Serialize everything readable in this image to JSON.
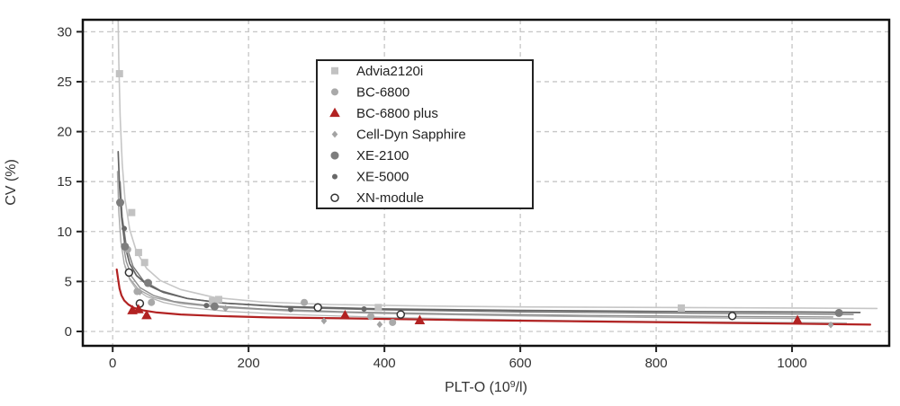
{
  "figure": {
    "background": "#ffffff",
    "xlabel_pre": "PLT-O (10",
    "xlabel_sup": "9",
    "xlabel_post": "/l)"
  },
  "colors": {
    "grid": "#c6c6c6",
    "axis_box": "#111111",
    "tick": "#222222",
    "text": "#333333",
    "legend_border": "#222222",
    "legend_bg": "#ffffff",
    "accent_red": "#b22222"
  },
  "chart_data": {
    "type": "scatter",
    "title": "",
    "xlabel": "PLT-O (10⁹/l)",
    "ylabel": "CV (%)",
    "xlim": [
      -44,
      1143
    ],
    "ylim": [
      -1.44,
      31.2
    ],
    "x_ticks": [
      0,
      200,
      400,
      600,
      800,
      1000
    ],
    "y_ticks": [
      0,
      5,
      10,
      15,
      20,
      25,
      30
    ],
    "grid": "dashed",
    "legend_position": "upper-left-of-center",
    "series": [
      {
        "name": "Advia2120i",
        "marker": "square",
        "marker_size": 8,
        "color": "#c2c2c2",
        "line_color": "#c6c6c6",
        "line_width": 1.6,
        "points": [
          [
            10,
            25.8
          ],
          [
            28,
            11.9
          ],
          [
            38,
            7.9
          ],
          [
            47,
            6.9
          ],
          [
            147,
            3.05
          ],
          [
            156,
            3.2
          ],
          [
            391,
            2.4
          ],
          [
            837,
            2.35
          ]
        ],
        "trend_curve": [
          [
            8,
            31.2
          ],
          [
            9,
            27
          ],
          [
            11,
            21.5
          ],
          [
            14,
            16.8
          ],
          [
            18,
            13.3
          ],
          [
            25,
            10.2
          ],
          [
            35,
            8.0
          ],
          [
            50,
            6.3
          ],
          [
            70,
            5.1
          ],
          [
            100,
            4.2
          ],
          [
            150,
            3.4
          ],
          [
            220,
            2.95
          ],
          [
            320,
            2.7
          ],
          [
            450,
            2.55
          ],
          [
            600,
            2.45
          ],
          [
            800,
            2.4
          ],
          [
            1000,
            2.35
          ],
          [
            1125,
            2.3
          ]
        ]
      },
      {
        "name": "BC-6800",
        "marker": "circle",
        "marker_size": 8,
        "color": "#a9a9a9",
        "line_color": "#a6a6a6",
        "line_width": 1.4,
        "points": [
          [
            22,
            8.2
          ],
          [
            36,
            4.0
          ],
          [
            57,
            2.9
          ],
          [
            282,
            2.9
          ],
          [
            380,
            1.5
          ],
          [
            412,
            0.9
          ]
        ],
        "trend_curve": [
          [
            7,
            16
          ],
          [
            9,
            12
          ],
          [
            12,
            9
          ],
          [
            17,
            6.8
          ],
          [
            25,
            5.3
          ],
          [
            38,
            4.2
          ],
          [
            60,
            3.4
          ],
          [
            100,
            2.8
          ],
          [
            160,
            2.4
          ],
          [
            260,
            2.05
          ],
          [
            400,
            1.8
          ],
          [
            600,
            1.55
          ],
          [
            800,
            1.4
          ],
          [
            1000,
            1.3
          ],
          [
            1090,
            1.25
          ]
        ]
      },
      {
        "name": "BC-6800 plus",
        "marker": "triangle",
        "marker_size": 10,
        "color": "#b22222",
        "line_color": "#b22222",
        "line_width": 2.2,
        "points": [
          [
            29,
            2.1
          ],
          [
            38,
            2.2
          ],
          [
            50,
            1.6
          ],
          [
            342,
            1.6
          ],
          [
            452,
            1.1
          ],
          [
            1008,
            1.1
          ]
        ],
        "trend_curve": [
          [
            6,
            6.2
          ],
          [
            8,
            5.2
          ],
          [
            10,
            4.3
          ],
          [
            13,
            3.6
          ],
          [
            17,
            3.1
          ],
          [
            23,
            2.7
          ],
          [
            32,
            2.35
          ],
          [
            45,
            2.1
          ],
          [
            65,
            1.9
          ],
          [
            100,
            1.7
          ],
          [
            150,
            1.55
          ],
          [
            230,
            1.4
          ],
          [
            350,
            1.3
          ],
          [
            500,
            1.15
          ],
          [
            700,
            1.0
          ],
          [
            900,
            0.85
          ],
          [
            1000,
            0.78
          ],
          [
            1115,
            0.68
          ]
        ]
      },
      {
        "name": "Cell-Dyn Sapphire",
        "marker": "diamond",
        "marker_size": 6,
        "color": "#a3a3a3",
        "line_color": "#b5b5b5",
        "line_width": 1.3,
        "points": [
          [
            40,
            3.95
          ],
          [
            166,
            2.3
          ],
          [
            311,
            1.05
          ],
          [
            393,
            0.7
          ],
          [
            1057,
            0.65
          ]
        ],
        "trend_curve": [
          [
            18,
            6.5
          ],
          [
            25,
            5.2
          ],
          [
            35,
            4.2
          ],
          [
            50,
            3.5
          ],
          [
            75,
            2.9
          ],
          [
            110,
            2.4
          ],
          [
            170,
            2.0
          ],
          [
            260,
            1.7
          ],
          [
            400,
            1.4
          ],
          [
            600,
            1.15
          ],
          [
            800,
            1.0
          ],
          [
            1000,
            0.9
          ],
          [
            1080,
            0.85
          ]
        ]
      },
      {
        "name": "XE-2100",
        "marker": "circle",
        "marker_size": 9,
        "color": "#7d7d7d",
        "line_color": "#636363",
        "line_width": 1.7,
        "points": [
          [
            11,
            12.9
          ],
          [
            18,
            8.5
          ],
          [
            52,
            4.85
          ],
          [
            150,
            2.5
          ],
          [
            1069,
            1.85
          ]
        ],
        "trend_curve": [
          [
            8,
            18
          ],
          [
            10,
            14.5
          ],
          [
            13,
            11.5
          ],
          [
            18,
            8.6
          ],
          [
            25,
            6.8
          ],
          [
            35,
            5.6
          ],
          [
            50,
            4.7
          ],
          [
            75,
            3.9
          ],
          [
            110,
            3.3
          ],
          [
            160,
            2.85
          ],
          [
            250,
            2.5
          ],
          [
            400,
            2.25
          ],
          [
            600,
            2.1
          ],
          [
            800,
            2.0
          ],
          [
            1000,
            1.95
          ],
          [
            1100,
            1.9
          ]
        ]
      },
      {
        "name": "XE-5000",
        "marker": "circle",
        "marker_size": 6,
        "color": "#686868",
        "line_color": "#7a7a7a",
        "line_width": 1.4,
        "points": [
          [
            17,
            10.3
          ],
          [
            138,
            2.6
          ],
          [
            262,
            2.2
          ],
          [
            370,
            2.25
          ]
        ],
        "trend_curve": [
          [
            11,
            15
          ],
          [
            14,
            11.5
          ],
          [
            20,
            8.6
          ],
          [
            30,
            6.5
          ],
          [
            45,
            5.1
          ],
          [
            70,
            4.1
          ],
          [
            110,
            3.3
          ],
          [
            170,
            2.8
          ],
          [
            260,
            2.4
          ],
          [
            400,
            2.15
          ],
          [
            600,
            1.95
          ],
          [
            800,
            1.85
          ],
          [
            1000,
            1.75
          ],
          [
            1090,
            1.7
          ]
        ]
      },
      {
        "name": "XN-module",
        "marker": "open-circle",
        "marker_size": 8,
        "color": "#ffffff",
        "stroke": "#333333",
        "line_color": "#8f8f8f",
        "line_width": 1.4,
        "points": [
          [
            40,
            2.8
          ],
          [
            24,
            5.9
          ],
          [
            302,
            2.4
          ],
          [
            424,
            1.7
          ],
          [
            912,
            1.55
          ]
        ],
        "trend_curve": [
          [
            16,
            8.5
          ],
          [
            20,
            7.0
          ],
          [
            28,
            5.5
          ],
          [
            40,
            4.4
          ],
          [
            60,
            3.6
          ],
          [
            90,
            3.0
          ],
          [
            140,
            2.6
          ],
          [
            220,
            2.25
          ],
          [
            350,
            1.95
          ],
          [
            500,
            1.75
          ],
          [
            700,
            1.6
          ],
          [
            900,
            1.5
          ],
          [
            1060,
            1.45
          ]
        ]
      }
    ]
  },
  "legend": {
    "items": [
      "Advia2120i",
      "BC-6800",
      "BC-6800 plus",
      "Cell-Dyn Sapphire",
      "XE-2100",
      "XE-5000",
      "XN-module"
    ]
  }
}
